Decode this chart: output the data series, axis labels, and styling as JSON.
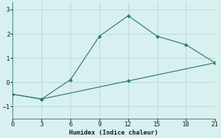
{
  "line1_x": [
    0,
    3,
    6,
    9,
    12,
    15,
    18,
    21
  ],
  "line1_y": [
    -0.5,
    -0.7,
    0.1,
    1.9,
    2.75,
    1.9,
    1.55,
    0.8
  ],
  "line2_x": [
    0,
    3,
    12,
    21
  ],
  "line2_y": [
    -0.5,
    -0.7,
    0.05,
    0.8
  ],
  "line_color": "#2e7d6e",
  "bg_color": "#d8f0ef",
  "grid_color": "#b8d8d4",
  "xlabel": "Humidex (Indice chaleur)",
  "xlim": [
    0,
    21
  ],
  "ylim": [
    -1.5,
    3.3
  ],
  "xticks": [
    0,
    3,
    6,
    9,
    12,
    15,
    18,
    21
  ],
  "yticks": [
    -1,
    0,
    1,
    2,
    3
  ],
  "marker": "D",
  "marker_size": 2.5,
  "line_width": 0.9
}
